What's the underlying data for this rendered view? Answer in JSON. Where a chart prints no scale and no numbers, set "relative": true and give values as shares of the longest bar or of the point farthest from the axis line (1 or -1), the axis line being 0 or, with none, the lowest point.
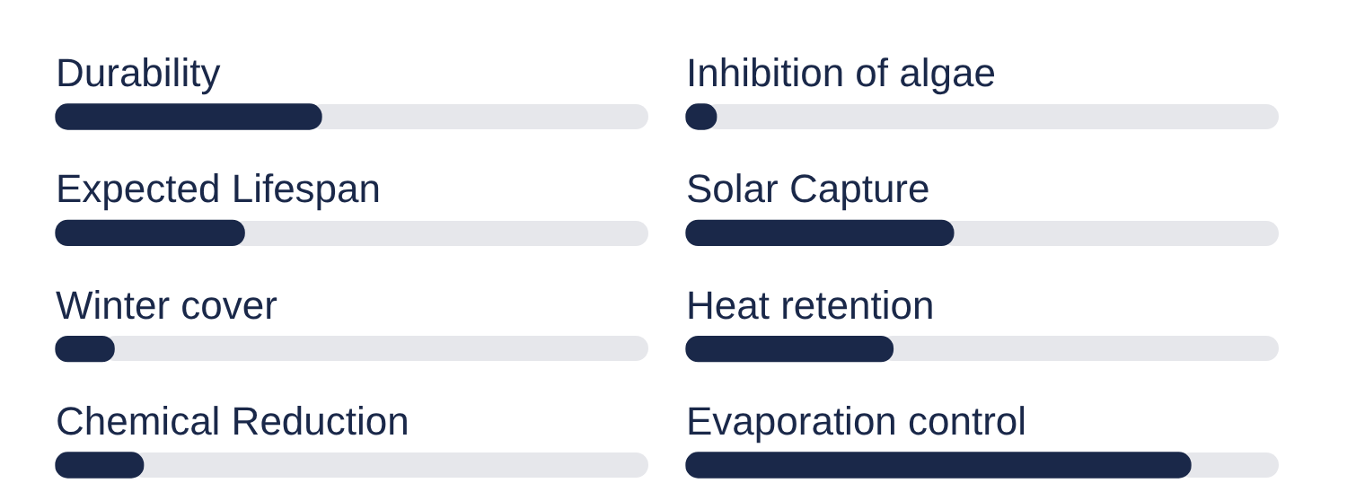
{
  "chart_data": [
    {
      "type": "bar",
      "orientation": "horizontal",
      "relative": true,
      "categories": [
        "Durability",
        "Expected Lifespan",
        "Winter cover",
        "Chemical Reduction"
      ],
      "values": [
        1,
        0.71,
        0.22,
        0.33
      ],
      "color": "#1a2849"
    },
    {
      "type": "bar",
      "orientation": "horizontal",
      "relative": true,
      "categories": [
        "Inhibition of algae",
        "Solar Capture",
        "Heat retention",
        "Evaporation control"
      ],
      "values": [
        0.06,
        0.53,
        0.41,
        1
      ],
      "color": "#1a2849"
    }
  ]
}
